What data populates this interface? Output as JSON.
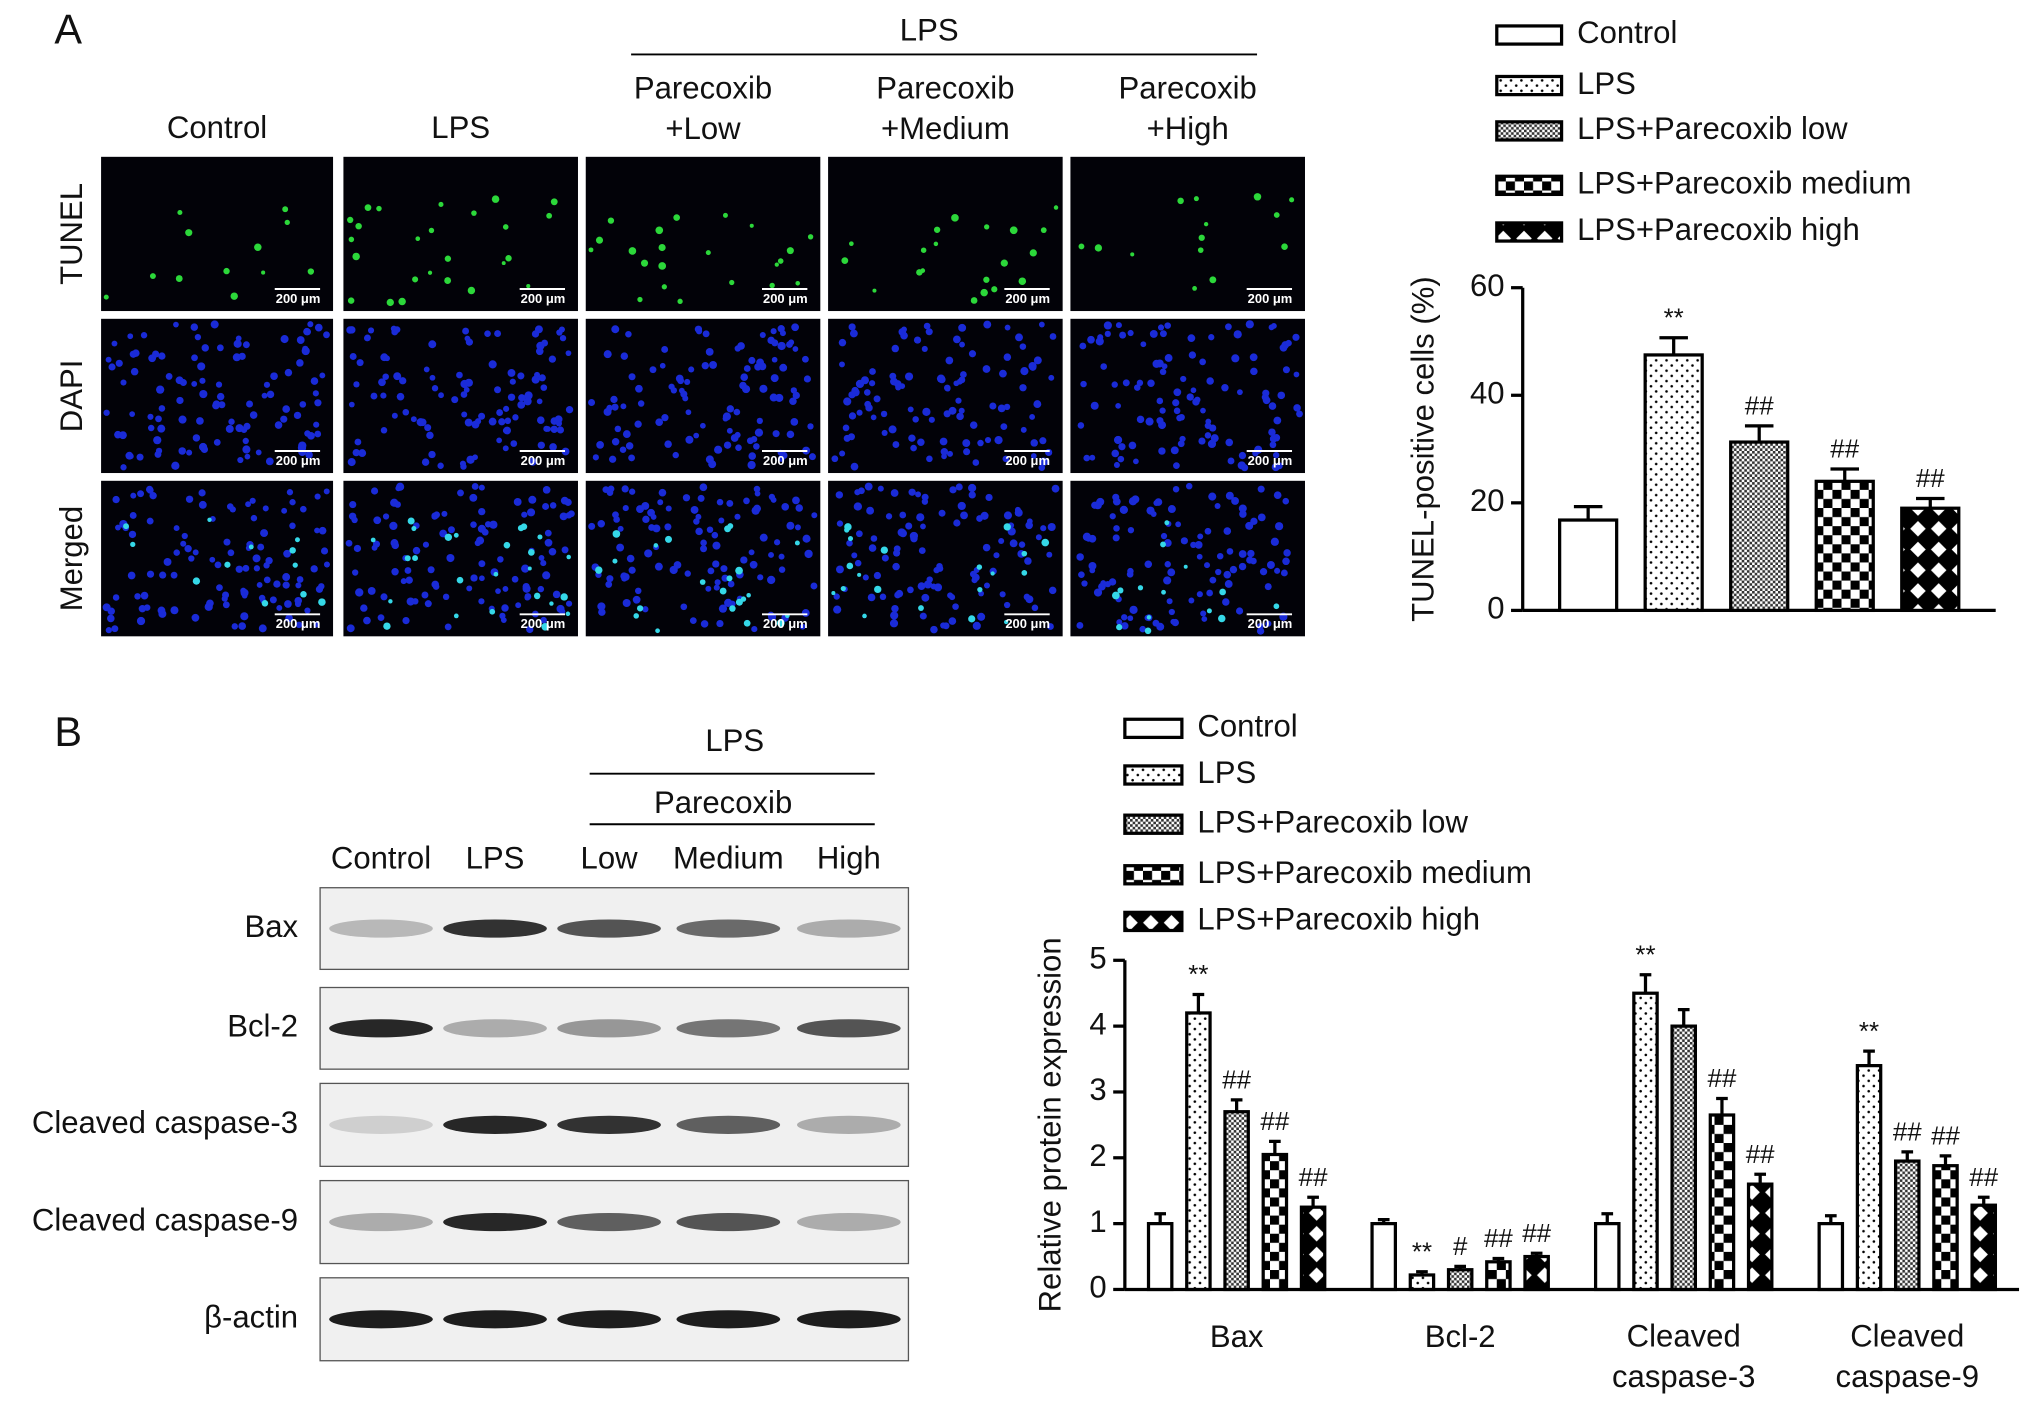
{
  "panel_a": {
    "label": "A",
    "group_label": "LPS",
    "columns": [
      "Control",
      "LPS",
      "Parecoxib\n+Low",
      "Parecoxib\n+Medium",
      "Parecoxib\n+High"
    ],
    "rows": [
      "TUNEL",
      "DAPI",
      "Merged"
    ],
    "scale_bar": "200 μm"
  },
  "panel_b": {
    "label": "B",
    "group_label": "LPS",
    "subgroup_label": "Parecoxib",
    "lanes": [
      "Control",
      "LPS",
      "Low",
      "Medium",
      "High"
    ],
    "proteins": [
      "Bax",
      "Bcl-2",
      "Cleaved caspase-3",
      "Cleaved caspase-9",
      "β-actin"
    ]
  },
  "chart_data": [
    {
      "type": "bar",
      "ylabel": "TUNEL-positive cells (%)",
      "categories": [
        null
      ],
      "ylim": [
        0,
        60
      ],
      "yticks": [
        0,
        20,
        40,
        60
      ],
      "series": [
        {
          "name": "Control",
          "pattern": "plain",
          "values": [
            16.8
          ],
          "errors": [
            2.5
          ],
          "annotations": [
            null
          ]
        },
        {
          "name": "LPS",
          "pattern": "dots",
          "values": [
            47.5
          ],
          "errors": [
            3.2
          ],
          "annotations": [
            "**"
          ]
        },
        {
          "name": "LPS+Parecoxib low",
          "pattern": "crosshatch",
          "values": [
            31.3
          ],
          "errors": [
            3.0
          ],
          "annotations": [
            "##"
          ]
        },
        {
          "name": "LPS+Parecoxib medium",
          "pattern": "checker",
          "values": [
            24.0
          ],
          "errors": [
            2.3
          ],
          "annotations": [
            "##"
          ]
        },
        {
          "name": "LPS+Parecoxib high",
          "pattern": "diamond",
          "values": [
            19.0
          ],
          "errors": [
            1.8
          ],
          "annotations": [
            "##"
          ]
        }
      ]
    },
    {
      "type": "bar",
      "ylabel": "Relative protein expression",
      "categories": [
        "Bax",
        "Bcl-2",
        "Cleaved\ncaspase-3",
        "Cleaved\ncaspase-9"
      ],
      "ylim": [
        0,
        5
      ],
      "yticks": [
        0,
        1,
        2,
        3,
        4,
        5
      ],
      "series": [
        {
          "name": "Control",
          "pattern": "plain",
          "values": [
            1.0,
            1.0,
            1.0,
            1.0
          ],
          "errors": [
            0.15,
            0.06,
            0.15,
            0.12
          ],
          "annotations": [
            null,
            null,
            null,
            null
          ]
        },
        {
          "name": "LPS",
          "pattern": "dots",
          "values": [
            4.2,
            0.22,
            4.5,
            3.4
          ],
          "errors": [
            0.28,
            0.05,
            0.28,
            0.22
          ],
          "annotations": [
            "**",
            "**",
            "**",
            "**"
          ]
        },
        {
          "name": "LPS+Parecoxib low",
          "pattern": "crosshatch",
          "values": [
            2.7,
            0.3,
            4.0,
            1.95
          ],
          "errors": [
            0.18,
            0.05,
            0.25,
            0.14
          ],
          "annotations": [
            "##",
            "#",
            null,
            "##"
          ]
        },
        {
          "name": "LPS+Parecoxib medium",
          "pattern": "checker",
          "values": [
            2.05,
            0.42,
            2.65,
            1.88
          ],
          "errors": [
            0.2,
            0.05,
            0.25,
            0.15
          ],
          "annotations": [
            "##",
            "##",
            "##",
            "##"
          ]
        },
        {
          "name": "LPS+Parecoxib high",
          "pattern": "diamond",
          "values": [
            1.25,
            0.5,
            1.6,
            1.28
          ],
          "errors": [
            0.15,
            0.05,
            0.15,
            0.12
          ],
          "annotations": [
            "##",
            "##",
            "##",
            "##"
          ]
        }
      ]
    }
  ]
}
